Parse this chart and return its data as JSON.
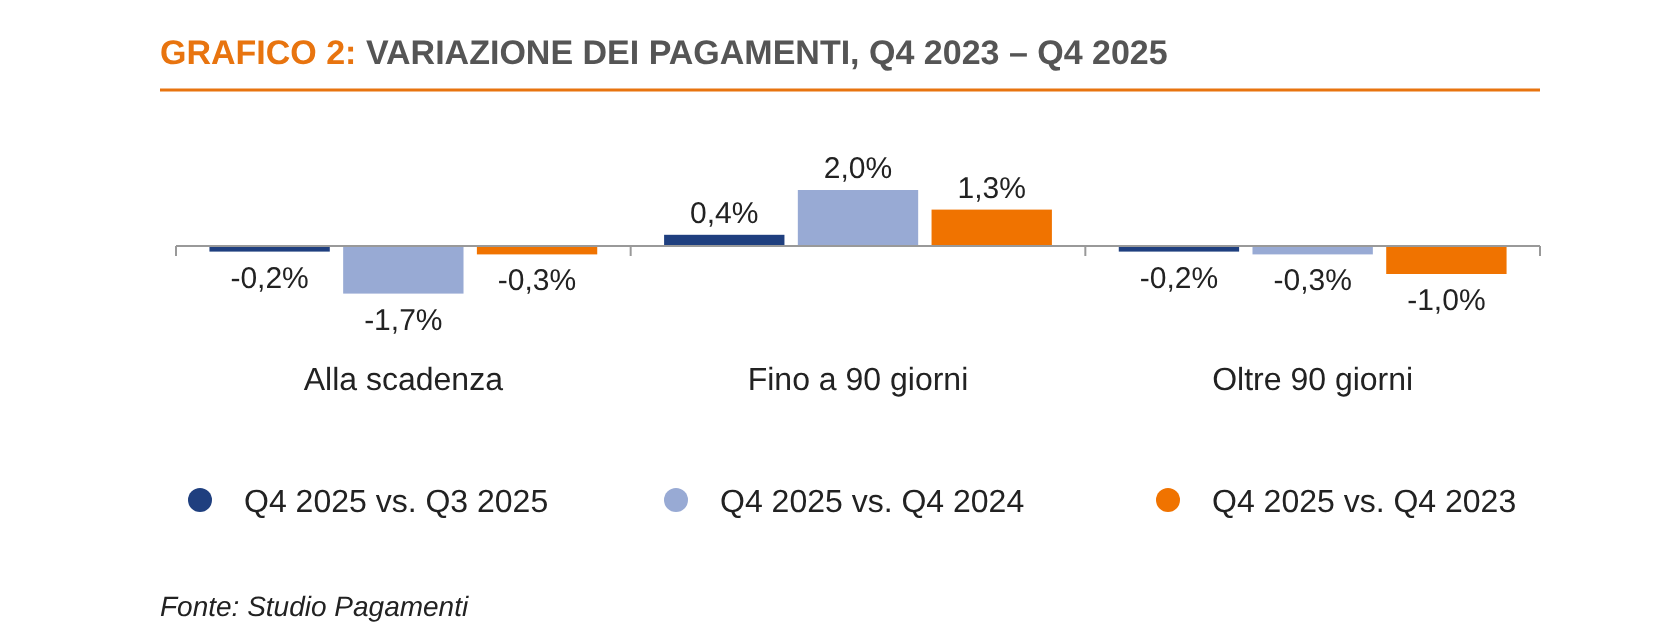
{
  "chart_data": {
    "type": "bar",
    "title": "GRAFICO 2: VARIAZIONE DEI PAGAMENTI, Q4 2023 – Q4 2025",
    "categories": [
      "Alla scadenza",
      "Fino a 90 giorni",
      "Oltre 90 giorni"
    ],
    "series": [
      {
        "name": "Q4 2025 vs. Q3 2025",
        "color": "#1f3f7f",
        "values": [
          -0.2,
          0.4,
          -0.2
        ],
        "value_labels": [
          "-0,2%",
          "0,4%",
          "-0,2%"
        ]
      },
      {
        "name": "Q4 2025 vs. Q4 2024",
        "color": "#98aad4",
        "values": [
          -1.7,
          2.0,
          -0.3
        ],
        "value_labels": [
          "-1,7%",
          "2,0%",
          "-0,3%"
        ]
      },
      {
        "name": "Q4 2025 vs. Q4 2023",
        "color": "#f07300",
        "values": [
          -0.3,
          1.3,
          -1.0
        ],
        "value_labels": [
          "-0,3%",
          "1,3%",
          "-1,0%"
        ]
      }
    ],
    "legend": "bottom",
    "annotations": [
      "Fonte: Studio Pagamenti"
    ]
  }
}
